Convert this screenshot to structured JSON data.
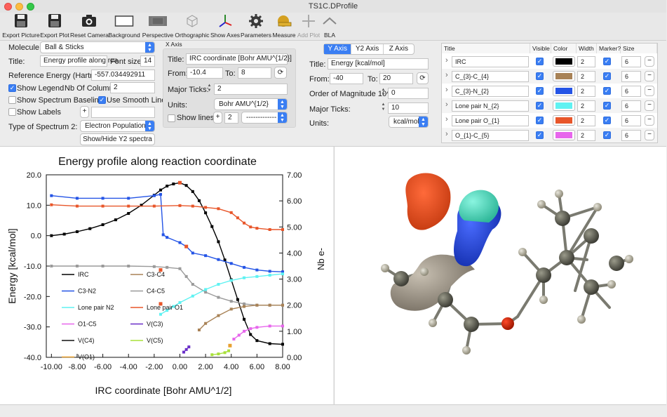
{
  "window": {
    "title": "TS1C.DProfile"
  },
  "toolbar": [
    {
      "label": "Export Picture",
      "icon": "floppy-disk-icon"
    },
    {
      "label": "Export Plot",
      "icon": "floppy-disk-icon"
    },
    {
      "label": "Reset Camera",
      "icon": "camera-icon"
    },
    {
      "label": "Background",
      "icon": "rectangle-icon"
    },
    {
      "label": "Perspective",
      "icon": "perspective-icon"
    },
    {
      "label": "Orthographic",
      "icon": "cube-icon"
    },
    {
      "label": "Show Axes",
      "icon": "axes-icon"
    },
    {
      "label": "Parameters",
      "icon": "gear-icon"
    },
    {
      "label": "Measure",
      "icon": "ruler-icon"
    },
    {
      "label": "Add Plot",
      "icon": "plus-icon"
    },
    {
      "label": "BLA",
      "icon": "chevron-up-icon"
    }
  ],
  "left_panel": {
    "molecule_label": "Molecule:",
    "molecule_value": "Ball & Sticks",
    "title_label": "Title:",
    "title_value": "Energy profile along rea",
    "font_size_label": "Font size:",
    "font_size_value": "14",
    "ref_energy_label": "Reference Energy (Hartree):",
    "ref_energy_value": "-557.034492911",
    "show_legend_label": "Show Legend",
    "nb_columns_label": "Nb Of Columns",
    "nb_columns_value": "2",
    "show_baseline_label": "Show Spectrum Baseline",
    "smooth_line_label": "Use Smooth Line",
    "show_labels_label": "Show Labels",
    "plus": "+",
    "spectrum2_label": "Type of Spectrum 2:",
    "spectrum2_value": "Electron Population",
    "showhide_button": "Show/Hide Y2 spectra"
  },
  "x_axis": {
    "group_label": "X Axis",
    "title_label": "Title:",
    "title_value": "IRC coordinate [Bohr AMU^{1/2}]",
    "from_label": "From:",
    "from_value": "-10.4",
    "to_label": "To:",
    "to_value": "8",
    "major_ticks_label": "Major Ticks:",
    "major_ticks_value": "2",
    "units_label": "Units:",
    "units_value": "Bohr AMU^{1/2}",
    "show_lines_label": "Show lines",
    "plus": "+",
    "lines_value": "2",
    "line_style": "-------------"
  },
  "y_axis": {
    "tabs": [
      "Y Axis",
      "Y2 Axis",
      "Z Axis"
    ],
    "title_label": "Title:",
    "title_value": "Energy [kcal/mol]",
    "from_label": "From:",
    "from_value": "-40",
    "to_label": "To:",
    "to_value": "20",
    "order_label": "Order of Magnitude 10^",
    "order_value": "0",
    "major_ticks_label": "Major Ticks:",
    "major_ticks_value": "10",
    "units_label": "Units:",
    "units_value": "kcal/mol"
  },
  "series_table": {
    "headers": [
      "Title",
      "Visible",
      "Color",
      "Width",
      "Marker?",
      "Size"
    ],
    "rows": [
      {
        "title": "IRC",
        "color": "#000000",
        "width": "2",
        "size": "6"
      },
      {
        "title": "C_{3}-C_{4}",
        "color": "#a88256",
        "width": "2",
        "size": "6"
      },
      {
        "title": "C_{3}-N_{2}",
        "color": "#2454e6",
        "width": "2",
        "size": "6"
      },
      {
        "title": "Lone pair N_{2}",
        "color": "#5ff2f2",
        "width": "2",
        "size": "6"
      },
      {
        "title": "Lone pair O_{1}",
        "color": "#e8562a",
        "width": "2",
        "size": "6"
      },
      {
        "title": "O_{1}-C_{5}",
        "color": "#e766ec",
        "width": "2",
        "size": "6"
      }
    ]
  },
  "chart_data": {
    "type": "line",
    "title": "Energy profile along reaction coordinate",
    "xlabel": "IRC coordinate [Bohr AMU^1/2]",
    "ylabel": "Energy [kcal/mol]",
    "y2label": "Nb e-",
    "xlim": [
      -10.4,
      8
    ],
    "ylim": [
      -40,
      20
    ],
    "y2lim": [
      0,
      7
    ],
    "xticks": [
      "-10.00",
      "-8.00",
      "-6.00",
      "-4.00",
      "-2.00",
      "0.00",
      "2.00",
      "4.00",
      "6.00",
      "8.00"
    ],
    "yticks": [
      "20.0",
      "10.0",
      "0.0",
      "-10.0",
      "-20.0",
      "-30.0",
      "-40.0"
    ],
    "y2ticks": [
      "7.00",
      "6.00",
      "5.00",
      "4.00",
      "3.00",
      "2.00",
      "1.00",
      "0.00"
    ],
    "series": [
      {
        "name": "IRC",
        "axis": "y",
        "color": "#000000",
        "x": [
          -10,
          -9,
          -8,
          -7,
          -6,
          -5,
          -4,
          -3,
          -2,
          -1.5,
          -1,
          -0.5,
          0,
          0.5,
          1,
          1.5,
          2,
          2.5,
          3,
          3.5,
          4,
          4.5,
          5,
          5.5,
          6,
          7,
          8
        ],
        "y": [
          0,
          0.5,
          1.3,
          2.3,
          3.6,
          5.2,
          7.3,
          10,
          13.3,
          15,
          16.3,
          17,
          17.4,
          16.5,
          14.5,
          11.5,
          7.5,
          3,
          -2,
          -8,
          -14.5,
          -21,
          -27.5,
          -32.5,
          -34.5,
          -35.5,
          -35.7
        ]
      },
      {
        "name": "C3-N2",
        "axis": "y2",
        "color": "#2454e6",
        "x": [
          -10,
          -8,
          -6,
          -4,
          -2,
          -1.5,
          -1.3,
          -1,
          0,
          0.5,
          1,
          2,
          3,
          4,
          5,
          6,
          7,
          8
        ],
        "y": [
          6.2,
          6.1,
          6.1,
          6.1,
          6.2,
          6.25,
          4.7,
          4.6,
          4.4,
          4.25,
          4.0,
          3.9,
          3.75,
          3.6,
          3.45,
          3.35,
          3.3,
          3.28
        ]
      },
      {
        "name": "C4-C5",
        "axis": "y2",
        "color": "#9a9a9a",
        "x": [
          -10,
          -8,
          -6,
          -4,
          -2,
          -1,
          0,
          0.5,
          1,
          2,
          3,
          4,
          5,
          6,
          7,
          8
        ],
        "y": [
          3.5,
          3.5,
          3.5,
          3.5,
          3.48,
          3.45,
          3.4,
          3.1,
          2.8,
          2.5,
          2.3,
          2.15,
          2.05,
          2.0,
          2.0,
          2.0
        ]
      },
      {
        "name": "Lone pair O1",
        "axis": "y2",
        "color": "#e8562a",
        "x": [
          -10,
          -8,
          -6,
          -4,
          -2,
          0,
          1,
          2,
          3,
          4,
          4.5,
          5,
          5.5,
          6,
          7,
          8
        ],
        "y": [
          5.85,
          5.8,
          5.8,
          5.8,
          5.8,
          5.82,
          5.8,
          5.75,
          5.7,
          5.55,
          5.35,
          5.15,
          5.0,
          4.95,
          4.9,
          4.9
        ]
      },
      {
        "name": "Lone pair N2",
        "axis": "y2",
        "color": "#5ff2f2",
        "x": [
          -1.5,
          -1,
          -0.5,
          0,
          1,
          2,
          3,
          4,
          5,
          6,
          7,
          8
        ],
        "y": [
          1.65,
          1.8,
          1.95,
          2.1,
          2.35,
          2.6,
          2.8,
          2.95,
          3.05,
          3.1,
          3.15,
          3.2
        ]
      },
      {
        "name": "C3-C4",
        "axis": "y2",
        "color": "#a88256",
        "x": [
          1.5,
          2,
          3,
          4,
          5,
          6,
          7,
          8
        ],
        "y": [
          1.05,
          1.3,
          1.6,
          1.85,
          1.95,
          2.0,
          2.0,
          2.0
        ]
      },
      {
        "name": "O1-C5",
        "axis": "y2",
        "color": "#e766ec",
        "x": [
          4.2,
          4.6,
          5,
          5.5,
          6,
          7,
          8
        ],
        "y": [
          0.7,
          0.85,
          1.0,
          1.1,
          1.15,
          1.2,
          1.2
        ]
      },
      {
        "name": "V(C3)",
        "axis": "y2",
        "color": "#6a2fc8",
        "x": [
          0.3,
          0.5,
          0.7
        ],
        "y": [
          0.2,
          0.3,
          0.4
        ]
      },
      {
        "name": "V(C5)",
        "axis": "y2",
        "color": "#a8e03a",
        "x": [
          2.5,
          3,
          3.5,
          3.8
        ],
        "y": [
          0.1,
          0.13,
          0.18,
          0.25
        ]
      }
    ],
    "marker_points": [
      {
        "axis": "y",
        "color": "#e8562a",
        "x": 0,
        "y": 17.4
      },
      {
        "axis": "y2",
        "color": "#e8562a",
        "x": -1.5,
        "y": 3.35
      },
      {
        "axis": "y2",
        "color": "#e8562a",
        "x": -1.5,
        "y": 2.05
      },
      {
        "axis": "y2",
        "color": "#e8562a",
        "x": 0.5,
        "y": 4.25
      },
      {
        "axis": "y2",
        "color": "#e8a030",
        "x": 3.9,
        "y": 0.45
      }
    ],
    "legend": [
      {
        "label": "IRC",
        "color": "#000000"
      },
      {
        "label": "C3-C4",
        "color": "#a88256"
      },
      {
        "label": "C3-N2",
        "color": "#2454e6"
      },
      {
        "label": "C4-C5",
        "color": "#9a9a9a"
      },
      {
        "label": "Lone pair N2",
        "color": "#5ff2f2"
      },
      {
        "label": "Lone pair O1",
        "color": "#e8562a"
      },
      {
        "label": "O1-C5",
        "color": "#e766ec"
      },
      {
        "label": "V(C3)",
        "color": "#6a2fc8"
      },
      {
        "label": "V(C4)",
        "color": "#111111"
      },
      {
        "label": "V(C5)",
        "color": "#a8e03a"
      },
      {
        "label": "V(O1)",
        "color": "#e8a030"
      }
    ]
  }
}
